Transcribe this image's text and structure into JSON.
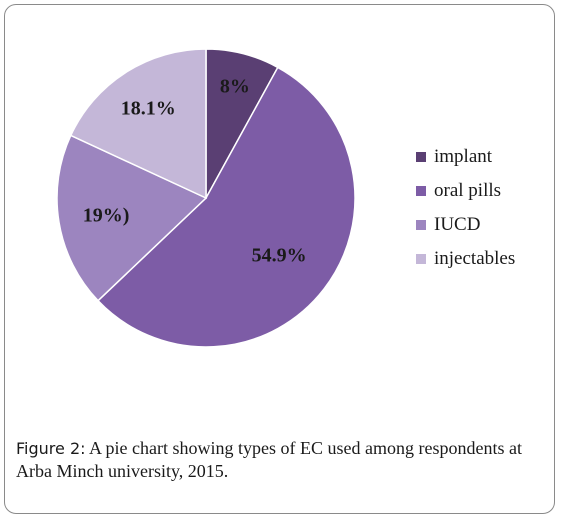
{
  "chart_data": {
    "type": "pie",
    "categories": [
      "implant",
      "oral pills",
      "IUCD",
      "injectables"
    ],
    "values": [
      8,
      54.9,
      19,
      18.1
    ],
    "data_labels": [
      "8%",
      "54.9%",
      "19%)",
      "18.1%"
    ],
    "colors": [
      "#5a3f73",
      "#7d5ca6",
      "#9c85bf",
      "#c4b7d8"
    ],
    "start_angle_deg": 0,
    "direction": "clockwise",
    "legend_position": "right"
  },
  "caption": {
    "prefix": "Figure 2:",
    "text": " A pie chart showing types of EC used among respondents at Arba Minch university, 2015."
  }
}
